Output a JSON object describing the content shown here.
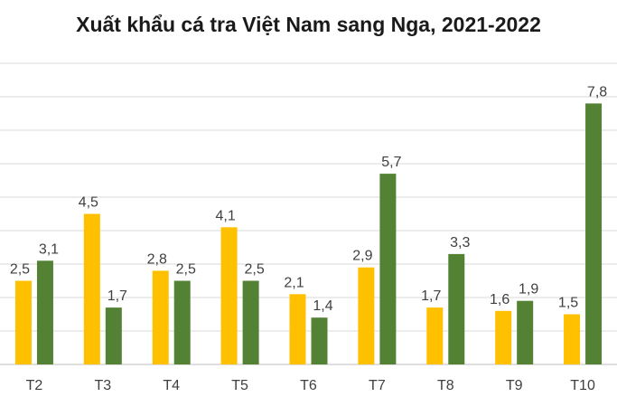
{
  "chart_data": {
    "type": "bar",
    "title": "Xuất khẩu cá tra Việt Nam sang Nga, 2021-2022",
    "xlabel": "",
    "ylabel": "",
    "categories": [
      "T2",
      "T3",
      "T4",
      "T5",
      "T6",
      "T7",
      "T8",
      "T9",
      "T10"
    ],
    "series": [
      {
        "values": [
          2.5,
          4.5,
          2.8,
          4.1,
          2.1,
          2.9,
          1.7,
          1.6,
          1.5
        ],
        "labels": [
          "2,5",
          "4,5",
          "2,8",
          "4,1",
          "2,1",
          "2,9",
          "1,7",
          "1,6",
          "1,5"
        ],
        "color": "#FFC000"
      },
      {
        "values": [
          3.1,
          1.7,
          2.5,
          2.5,
          1.4,
          5.7,
          3.3,
          1.9,
          7.8
        ],
        "labels": [
          "3,1",
          "1,7",
          "2,5",
          "2,5",
          "1,4",
          "5,7",
          "3,3",
          "1,9",
          "7,8"
        ],
        "color": "#548235"
      }
    ],
    "ylim": [
      0,
      9
    ],
    "grid": true,
    "legend": "none",
    "gridline_color": "#d9d9d9"
  }
}
